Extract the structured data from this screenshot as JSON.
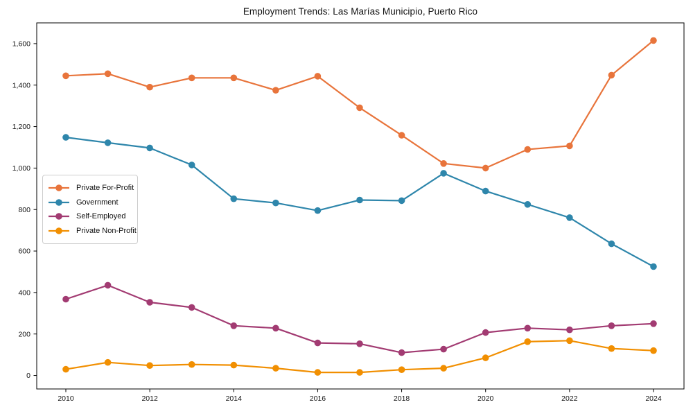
{
  "title": "Employment Trends: Las Marías Municipio, Puerto Rico",
  "chart_data": {
    "type": "line",
    "title": "Employment Trends: Las Marías Municipio, Puerto Rico",
    "xlabel": "",
    "ylabel": "",
    "x": [
      2010,
      2011,
      2012,
      2013,
      2014,
      2015,
      2016,
      2017,
      2018,
      2019,
      2020,
      2021,
      2022,
      2023,
      2024
    ],
    "series": [
      {
        "name": "Private For-Profit",
        "color": "#E8743B",
        "values": [
          1445,
          1455,
          1390,
          1435,
          1435,
          1375,
          1443,
          1291,
          1158,
          1022,
          1000,
          1090,
          1107,
          1448,
          1615
        ]
      },
      {
        "name": "Government",
        "color": "#2E86AB",
        "values": [
          1148,
          1122,
          1097,
          1015,
          852,
          832,
          795,
          846,
          843,
          975,
          889,
          825,
          761,
          635,
          525
        ]
      },
      {
        "name": "Self-Employed",
        "color": "#A23B72",
        "values": [
          368,
          435,
          353,
          328,
          240,
          228,
          157,
          153,
          110,
          127,
          207,
          228,
          220,
          240,
          250
        ]
      },
      {
        "name": "Private Non-Profit",
        "color": "#F18F01",
        "values": [
          30,
          63,
          48,
          53,
          50,
          35,
          15,
          15,
          28,
          35,
          85,
          163,
          168,
          130,
          120
        ]
      }
    ],
    "xticks": [
      2010,
      2012,
      2014,
      2016,
      2018,
      2020,
      2022,
      2024
    ],
    "yticks": [
      0,
      200,
      400,
      600,
      800,
      1000,
      1200,
      1400,
      1600
    ],
    "ylim": [
      -65,
      1700
    ],
    "grid": false,
    "legend_position": "center-left",
    "axis_color": "#000000"
  }
}
